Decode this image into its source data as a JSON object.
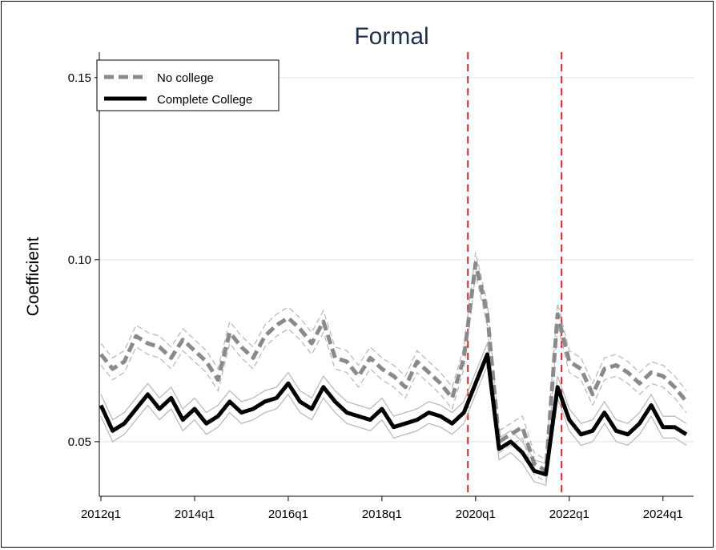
{
  "chart_data": {
    "type": "line",
    "title": "Formal",
    "xlabel": "",
    "ylabel": "Coefficient",
    "xlim": [
      0,
      51
    ],
    "ylim": [
      0.035,
      0.157
    ],
    "y_ticks": [
      0.05,
      0.1,
      0.15
    ],
    "y_tick_labels": [
      "0.05",
      "0.10",
      "0.15"
    ],
    "x_ticks": [
      0,
      8,
      16,
      24,
      32,
      40,
      48
    ],
    "x_tick_labels": [
      "2012q1",
      "2014q1",
      "2016q1",
      "2018q1",
      "2020q1",
      "2022q1",
      "2024q1"
    ],
    "grid": true,
    "legend": "top-left",
    "vlines": [
      31,
      39
    ],
    "vline_color": "#e8211f",
    "series": [
      {
        "name": "No college",
        "color": "#8a8a8a",
        "values": [
          0.074,
          0.07,
          0.072,
          0.079,
          0.077,
          0.076,
          0.073,
          0.078,
          0.075,
          0.072,
          0.067,
          0.08,
          0.076,
          0.073,
          0.079,
          0.082,
          0.084,
          0.081,
          0.077,
          0.083,
          0.073,
          0.072,
          0.068,
          0.073,
          0.07,
          0.068,
          0.065,
          0.072,
          0.069,
          0.066,
          0.062,
          0.073,
          0.099,
          0.085,
          0.05,
          0.052,
          0.054,
          0.044,
          0.042,
          0.085,
          0.072,
          0.07,
          0.063,
          0.07,
          0.071,
          0.069,
          0.066,
          0.069,
          0.068,
          0.065,
          0.061
        ]
      },
      {
        "name": "Complete College",
        "color": "#000000",
        "values": [
          0.06,
          0.053,
          0.055,
          0.059,
          0.063,
          0.059,
          0.062,
          0.056,
          0.059,
          0.055,
          0.057,
          0.061,
          0.058,
          0.059,
          0.061,
          0.062,
          0.066,
          0.061,
          0.059,
          0.065,
          0.061,
          0.058,
          0.057,
          0.056,
          0.059,
          0.054,
          0.055,
          0.056,
          0.058,
          0.057,
          0.055,
          0.058,
          0.066,
          0.074,
          0.048,
          0.05,
          0.047,
          0.042,
          0.041,
          0.065,
          0.056,
          0.052,
          0.053,
          0.058,
          0.053,
          0.052,
          0.055,
          0.06,
          0.054,
          0.054,
          0.052
        ]
      }
    ],
    "ci_offset": 0.003
  }
}
